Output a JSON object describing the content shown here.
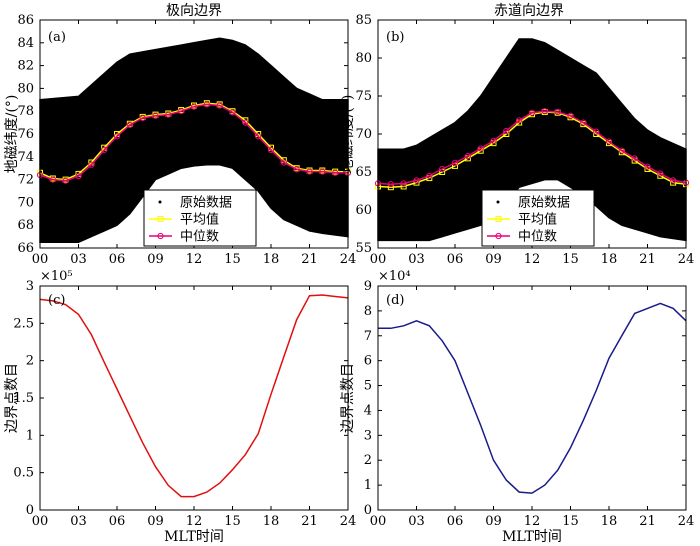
{
  "figure": {
    "bottom_xlabel": "MLT时间"
  },
  "chart_data": [
    {
      "id": "a",
      "type": "scatter",
      "panel_label": "(a)",
      "title": "极向边界",
      "xlabel": "",
      "ylabel": "地磁纬度/(°)",
      "xlim": [
        0,
        24
      ],
      "ylim": [
        66,
        86
      ],
      "x_ticks": [
        "00",
        "03",
        "06",
        "09",
        "12",
        "15",
        "18",
        "21",
        "24"
      ],
      "y_ticks": [
        66,
        68,
        70,
        72,
        74,
        76,
        78,
        80,
        82,
        84,
        86
      ],
      "legend_position": "lower-center",
      "legend": [
        "原始数据",
        "平均值",
        "中位数"
      ],
      "scatter_band": [
        {
          "x": 0,
          "y_min": 66.5,
          "y_max": 79.0
        },
        {
          "x": 3,
          "y_min": 66.5,
          "y_max": 79.3
        },
        {
          "x": 4,
          "y_min": 67.0,
          "y_max": 80.3
        },
        {
          "x": 5,
          "y_min": 67.5,
          "y_max": 81.3
        },
        {
          "x": 6,
          "y_min": 68.0,
          "y_max": 82.3
        },
        {
          "x": 7,
          "y_min": 69.0,
          "y_max": 83.0
        },
        {
          "x": 8,
          "y_min": 70.5,
          "y_max": 83.2
        },
        {
          "x": 9,
          "y_min": 72.0,
          "y_max": 83.4
        },
        {
          "x": 10,
          "y_min": 72.5,
          "y_max": 83.6
        },
        {
          "x": 11,
          "y_min": 73.0,
          "y_max": 83.8
        },
        {
          "x": 12,
          "y_min": 73.2,
          "y_max": 84.0
        },
        {
          "x": 13,
          "y_min": 73.3,
          "y_max": 84.2
        },
        {
          "x": 14,
          "y_min": 73.3,
          "y_max": 84.4
        },
        {
          "x": 15,
          "y_min": 73.0,
          "y_max": 84.2
        },
        {
          "x": 16,
          "y_min": 72.0,
          "y_max": 83.8
        },
        {
          "x": 17,
          "y_min": 71.0,
          "y_max": 83.0
        },
        {
          "x": 18,
          "y_min": 69.5,
          "y_max": 82.0
        },
        {
          "x": 19,
          "y_min": 68.5,
          "y_max": 81.0
        },
        {
          "x": 20,
          "y_min": 68.0,
          "y_max": 80.0
        },
        {
          "x": 21,
          "y_min": 67.5,
          "y_max": 79.5
        },
        {
          "x": 22,
          "y_min": 67.3,
          "y_max": 79.0
        },
        {
          "x": 24,
          "y_min": 67.0,
          "y_max": 79.0
        }
      ],
      "series": [
        {
          "name": "平均值",
          "color": "#ffff00",
          "marker": "square",
          "x": [
            0,
            1,
            2,
            3,
            4,
            5,
            6,
            7,
            8,
            9,
            10,
            11,
            12,
            13,
            14,
            15,
            16,
            17,
            18,
            19,
            20,
            21,
            22,
            23,
            24
          ],
          "values": [
            72.6,
            72.1,
            72.0,
            72.5,
            73.5,
            74.8,
            76.0,
            76.9,
            77.5,
            77.7,
            77.8,
            78.1,
            78.5,
            78.7,
            78.6,
            78.0,
            77.2,
            76.0,
            74.8,
            73.7,
            73.0,
            72.8,
            72.8,
            72.7,
            72.7
          ]
        },
        {
          "name": "中位数",
          "color": "#e8007a",
          "marker": "circle",
          "x": [
            0,
            1,
            2,
            3,
            4,
            5,
            6,
            7,
            8,
            9,
            10,
            11,
            12,
            13,
            14,
            15,
            16,
            17,
            18,
            19,
            20,
            21,
            22,
            23,
            24
          ],
          "values": [
            72.4,
            72.0,
            71.9,
            72.3,
            73.3,
            74.6,
            75.8,
            76.8,
            77.4,
            77.6,
            77.7,
            78.0,
            78.4,
            78.6,
            78.5,
            77.9,
            77.0,
            75.8,
            74.6,
            73.5,
            72.9,
            72.7,
            72.7,
            72.6,
            72.6
          ]
        }
      ]
    },
    {
      "id": "b",
      "type": "scatter",
      "panel_label": "(b)",
      "title": "赤道向边界",
      "xlabel": "",
      "ylabel": "地磁纬度/(°)",
      "xlim": [
        0,
        24
      ],
      "ylim": [
        55,
        85
      ],
      "x_ticks": [
        "00",
        "03",
        "06",
        "09",
        "12",
        "15",
        "18",
        "21",
        "24"
      ],
      "y_ticks": [
        55,
        60,
        65,
        70,
        75,
        80,
        85
      ],
      "legend_position": "lower-center",
      "legend": [
        "原始数据",
        "平均值",
        "中位数"
      ],
      "scatter_band": [
        {
          "x": 0,
          "y_min": 56.0,
          "y_max": 68.0
        },
        {
          "x": 2,
          "y_min": 56.0,
          "y_max": 68.0
        },
        {
          "x": 3,
          "y_min": 56.0,
          "y_max": 68.5
        },
        {
          "x": 4,
          "y_min": 56.0,
          "y_max": 69.5
        },
        {
          "x": 5,
          "y_min": 56.5,
          "y_max": 70.5
        },
        {
          "x": 6,
          "y_min": 57.0,
          "y_max": 71.5
        },
        {
          "x": 7,
          "y_min": 57.5,
          "y_max": 73.0
        },
        {
          "x": 8,
          "y_min": 58.0,
          "y_max": 75.0
        },
        {
          "x": 9,
          "y_min": 59.0,
          "y_max": 77.5
        },
        {
          "x": 10,
          "y_min": 61.0,
          "y_max": 80.0
        },
        {
          "x": 11,
          "y_min": 63.0,
          "y_max": 82.5
        },
        {
          "x": 12,
          "y_min": 63.5,
          "y_max": 82.5
        },
        {
          "x": 13,
          "y_min": 64.0,
          "y_max": 82.0
        },
        {
          "x": 14,
          "y_min": 64.0,
          "y_max": 81.0
        },
        {
          "x": 15,
          "y_min": 63.0,
          "y_max": 80.0
        },
        {
          "x": 16,
          "y_min": 62.0,
          "y_max": 79.0
        },
        {
          "x": 17,
          "y_min": 60.5,
          "y_max": 78.0
        },
        {
          "x": 18,
          "y_min": 59.0,
          "y_max": 76.0
        },
        {
          "x": 19,
          "y_min": 58.0,
          "y_max": 74.0
        },
        {
          "x": 20,
          "y_min": 57.5,
          "y_max": 72.0
        },
        {
          "x": 21,
          "y_min": 57.0,
          "y_max": 70.5
        },
        {
          "x": 22,
          "y_min": 56.5,
          "y_max": 69.5
        },
        {
          "x": 24,
          "y_min": 56.0,
          "y_max": 68.0
        }
      ],
      "series": [
        {
          "name": "平均值",
          "color": "#ffff00",
          "marker": "square",
          "x": [
            0,
            1,
            2,
            3,
            4,
            5,
            6,
            7,
            8,
            9,
            10,
            11,
            12,
            13,
            14,
            15,
            16,
            17,
            18,
            19,
            20,
            21,
            22,
            23,
            24
          ],
          "values": [
            63.1,
            63.0,
            63.1,
            63.6,
            64.2,
            65.0,
            65.8,
            66.8,
            67.8,
            68.8,
            70.0,
            71.5,
            72.6,
            72.9,
            72.8,
            72.2,
            71.3,
            70.0,
            68.8,
            67.6,
            66.5,
            65.4,
            64.5,
            63.6,
            63.4
          ]
        },
        {
          "name": "中位数",
          "color": "#e8007a",
          "marker": "circle",
          "x": [
            0,
            1,
            2,
            3,
            4,
            5,
            6,
            7,
            8,
            9,
            10,
            11,
            12,
            13,
            14,
            15,
            16,
            17,
            18,
            19,
            20,
            21,
            22,
            23,
            24
          ],
          "values": [
            63.5,
            63.4,
            63.5,
            63.9,
            64.5,
            65.4,
            66.2,
            67.1,
            68.1,
            69.1,
            70.4,
            71.8,
            72.8,
            73.0,
            72.9,
            72.4,
            71.5,
            70.3,
            69.0,
            67.8,
            66.8,
            65.7,
            64.8,
            63.9,
            63.6
          ]
        }
      ]
    },
    {
      "id": "c",
      "type": "line",
      "panel_label": "(c)",
      "title": "",
      "xlabel": "MLT时间",
      "ylabel": "边界点数目",
      "exponent": "×10⁵",
      "xlim": [
        0,
        24
      ],
      "ylim": [
        0,
        3
      ],
      "x_ticks": [
        "00",
        "03",
        "06",
        "09",
        "12",
        "15",
        "18",
        "21",
        "24"
      ],
      "y_ticks": [
        "0",
        "0.5",
        "1",
        "1.5",
        "2",
        "2.5",
        "3"
      ],
      "series": [
        {
          "name": "count",
          "color": "#e01010",
          "x": [
            0,
            1,
            2,
            3,
            4,
            5,
            6,
            7,
            8,
            9,
            10,
            11,
            12,
            13,
            14,
            15,
            16,
            17,
            18,
            19,
            20,
            21,
            22,
            23,
            24
          ],
          "values": [
            2.82,
            2.8,
            2.75,
            2.62,
            2.35,
            1.98,
            1.62,
            1.26,
            0.9,
            0.58,
            0.33,
            0.18,
            0.18,
            0.24,
            0.36,
            0.54,
            0.74,
            1.02,
            1.55,
            2.05,
            2.55,
            2.87,
            2.88,
            2.86,
            2.84
          ]
        }
      ]
    },
    {
      "id": "d",
      "type": "line",
      "panel_label": "(d)",
      "title": "",
      "xlabel": "MLT时间",
      "ylabel": "边界点数目",
      "exponent": "×10⁴",
      "xlim": [
        0,
        24
      ],
      "ylim": [
        0,
        9
      ],
      "x_ticks": [
        "00",
        "03",
        "06",
        "09",
        "12",
        "15",
        "18",
        "21",
        "24"
      ],
      "y_ticks": [
        "0",
        "1",
        "2",
        "3",
        "4",
        "5",
        "6",
        "7",
        "8",
        "9"
      ],
      "series": [
        {
          "name": "count",
          "color": "#1a1a8c",
          "x": [
            0,
            1,
            2,
            3,
            4,
            5,
            6,
            7,
            8,
            9,
            10,
            11,
            12,
            13,
            14,
            15,
            16,
            17,
            18,
            19,
            20,
            21,
            22,
            23,
            24
          ],
          "values": [
            7.3,
            7.3,
            7.4,
            7.6,
            7.4,
            6.8,
            6.0,
            4.7,
            3.4,
            2.0,
            1.2,
            0.72,
            0.68,
            1.0,
            1.6,
            2.5,
            3.6,
            4.8,
            6.1,
            7.0,
            7.9,
            8.1,
            8.3,
            8.1,
            7.6
          ]
        }
      ]
    }
  ]
}
